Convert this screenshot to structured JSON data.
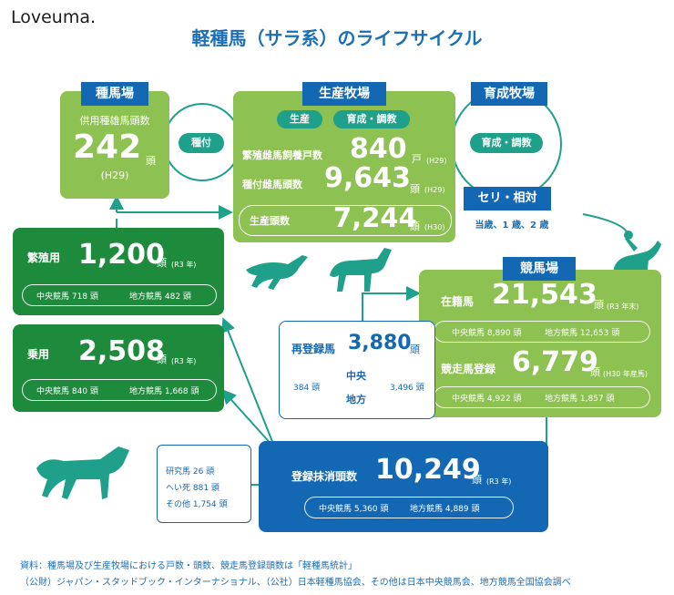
{
  "logo": "Loveuma.",
  "title": "軽種馬（サラ系）のライフサイクル",
  "stud": {
    "tag": "種馬場",
    "label": "供用種雄馬頭数",
    "value": "242",
    "unit": "頭",
    "year": "(H29)"
  },
  "mating": "種付",
  "breeding_farm": {
    "tag": "生産牧場",
    "pill_production": "生産",
    "pill_raising": "育成・調教",
    "mare_label": "繁殖雌馬飼養戸数",
    "mare_value": "840",
    "mare_unit": "戸",
    "mare_year": "(H29)",
    "bred_label": "種付雌馬頭数",
    "bred_value": "9,643",
    "bred_unit": "頭",
    "bred_year": "(H29)",
    "prod_label": "生産頭数",
    "prod_value": "7,244",
    "prod_unit": "頭",
    "prod_year": "(H30)"
  },
  "training_farm": {
    "tag": "育成牧場",
    "pill": "育成・調教"
  },
  "auction": {
    "label": "セリ・相対",
    "sub": "当歳、1 歳、2 歳"
  },
  "breeding_use": {
    "label": "繁殖用",
    "value": "1,200",
    "unit": "頭",
    "year": "(R3 年)",
    "central": "中央競馬 718 頭",
    "local": "地方競馬 482 頭"
  },
  "riding_use": {
    "label": "乗用",
    "value": "2,508",
    "unit": "頭",
    "year": "(R3 年)",
    "central": "中央競馬 840 頭",
    "local": "地方競馬 1,668 頭"
  },
  "racecourse": {
    "tag": "競馬場",
    "enrolled_label": "在籍馬",
    "enrolled_value": "21,543",
    "enrolled_unit": "頭",
    "enrolled_year": "(R3 年末)",
    "enrolled_central": "中央競馬 8,890 頭",
    "enrolled_local": "地方競馬 12,653 頭",
    "reg_label": "競走馬登録",
    "reg_value": "6,779",
    "reg_unit": "頭",
    "reg_year": "(H30 年産馬)",
    "reg_central": "中央競馬 4,922 頭",
    "reg_local": "地方競馬 1,857 頭"
  },
  "reregistration": {
    "label": "再登録馬",
    "value": "3,880",
    "unit": "頭",
    "left_count": "384 頭",
    "right_count": "3,496 頭",
    "central": "中央",
    "local": "地方"
  },
  "deregistration": {
    "label": "登録抹消頭数",
    "value": "10,249",
    "unit": "頭",
    "year": "(R3 年)",
    "central": "中央競馬 5,360 頭",
    "local": "地方競馬 4,889 頭"
  },
  "other_outcomes": {
    "research": "研究馬 26 頭",
    "death": "へい死 881 頭",
    "other": "その他 1,754 頭"
  },
  "footnote": {
    "line1": "資料：種馬場及び生産牧場における戸数・頭数、競走馬登録頭数は「軽種馬統計」",
    "line2": "（公財）ジャパン・スタッドブック・インターナショナル、（公社）日本軽種馬協会、その他は日本中央競馬会、地方競馬全国協会調べ"
  },
  "colors": {
    "light_green": "#8dc151",
    "dark_green": "#1e8a3c",
    "blue": "#1468b3",
    "teal": "#1ea08a"
  }
}
